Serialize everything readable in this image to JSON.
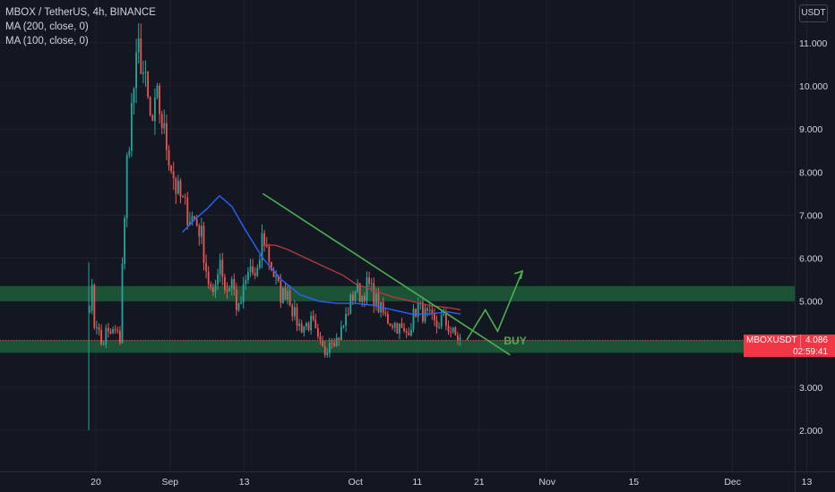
{
  "legend": {
    "symbol_line": "MBOX / TetherUS, 4h, BINANCE",
    "ma200": "MA (200, close, 0)",
    "ma100": "MA (100, close, 0)"
  },
  "currency_button": "USDT",
  "price_tag": {
    "symbol": "MBOXUSDT",
    "price": "4.086",
    "countdown": "02:59:41"
  },
  "colors": {
    "background": "#131722",
    "up": "#26a69a",
    "down": "#ef5350",
    "ma200": "#b23a3a",
    "ma100": "#2962ff",
    "trendline": "#4caf50",
    "zone": "#1f5e3a",
    "price_tag": "#f23645"
  },
  "chart_data": {
    "type": "candlestick",
    "ylim": [
      1.6,
      11.9
    ],
    "y_ticks": [
      "2.000",
      "3.000",
      "4.000",
      "5.000",
      "6.000",
      "7.000",
      "8.000",
      "9.000",
      "10.000",
      "11.000"
    ],
    "x_ticks": [
      "20",
      "Sep",
      "13",
      "Oct",
      "11",
      "21",
      "Nov",
      "15",
      "Dec",
      "13"
    ],
    "last_price": 4.086,
    "price_path": [
      [
        "Aug 19",
        5.0
      ],
      [
        "Aug 19",
        5.9
      ],
      [
        "Aug 20",
        4.0
      ],
      [
        "Aug 20",
        4.6
      ],
      [
        "Aug 21",
        3.9
      ],
      [
        "Aug 22",
        4.5
      ],
      [
        "Aug 22",
        4.2
      ],
      [
        "Aug 23",
        4.3
      ],
      [
        "Aug 24",
        4.1
      ],
      [
        "Aug 24",
        5.3
      ],
      [
        "Aug 25",
        7.6
      ],
      [
        "Aug 25",
        8.2
      ],
      [
        "Aug 26",
        9.8
      ],
      [
        "Aug 27",
        10.9
      ],
      [
        "Aug 28",
        10.0
      ],
      [
        "Aug 29",
        9.0
      ],
      [
        "Aug 30",
        9.7
      ],
      [
        "Aug 31",
        8.9
      ],
      [
        "Sep 1",
        8.3
      ],
      [
        "Sep 2",
        7.6
      ],
      [
        "Sep 3",
        7.3
      ],
      [
        "Sep 4",
        7.0
      ],
      [
        "Sep 5",
        6.9
      ],
      [
        "Sep 6",
        6.6
      ],
      [
        "Sep 7",
        5.6
      ],
      [
        "Sep 8",
        5.0
      ],
      [
        "Sep 9",
        6.1
      ],
      [
        "Sep 10",
        5.2
      ],
      [
        "Sep 11",
        5.5
      ],
      [
        "Sep 12",
        4.7
      ],
      [
        "Sep 13",
        5.3
      ],
      [
        "Sep 14",
        5.8
      ],
      [
        "Sep 15",
        5.4
      ],
      [
        "Sep 16",
        6.6
      ],
      [
        "Sep 17",
        6.0
      ],
      [
        "Sep 18",
        5.5
      ],
      [
        "Sep 19",
        5.1
      ],
      [
        "Sep 20",
        5.3
      ],
      [
        "Sep 21",
        4.7
      ],
      [
        "Sep 22",
        4.4
      ],
      [
        "Sep 24",
        4.5
      ],
      [
        "Sep 25",
        4.0
      ],
      [
        "Sep 26",
        3.8
      ],
      [
        "Sep 27",
        4.2
      ],
      [
        "Sep 28",
        4.1
      ],
      [
        "Sep 29",
        4.4
      ],
      [
        "Sep 30",
        4.9
      ],
      [
        "Oct 1",
        5.3
      ],
      [
        "Oct 2",
        5.1
      ],
      [
        "Oct 3",
        5.4
      ],
      [
        "Oct 4",
        5.1
      ],
      [
        "Oct 5",
        4.8
      ],
      [
        "Oct 6",
        4.6
      ],
      [
        "Oct 7",
        4.5
      ],
      [
        "Oct 8",
        4.4
      ],
      [
        "Oct 9",
        4.2
      ],
      [
        "Oct 10",
        4.5
      ],
      [
        "Oct 11",
        4.9
      ],
      [
        "Oct 12",
        4.7
      ],
      [
        "Oct 13",
        4.6
      ],
      [
        "Oct 14",
        4.4
      ],
      [
        "Oct 15",
        4.6
      ],
      [
        "Oct 16",
        4.4
      ],
      [
        "Oct 17",
        4.2
      ],
      [
        "Oct 18",
        4.1
      ]
    ],
    "ma200": [
      [
        "Sep 16",
        6.3
      ],
      [
        "Sep 18",
        6.3
      ],
      [
        "Sep 20",
        6.2
      ],
      [
        "Sep 23",
        6.0
      ],
      [
        "Sep 26",
        5.8
      ],
      [
        "Sep 29",
        5.6
      ],
      [
        "Oct 1",
        5.4
      ],
      [
        "Oct 4",
        5.25
      ],
      [
        "Oct 7",
        5.1
      ],
      [
        "Oct 10",
        5.0
      ],
      [
        "Oct 13",
        4.9
      ],
      [
        "Oct 16",
        4.85
      ],
      [
        "Oct 18",
        4.8
      ]
    ],
    "ma100": [
      [
        "Sep 3",
        6.6
      ],
      [
        "Sep 5",
        6.9
      ],
      [
        "Sep 7",
        7.15
      ],
      [
        "Sep 9",
        7.45
      ],
      [
        "Sep 11",
        7.2
      ],
      [
        "Sep 13",
        6.7
      ],
      [
        "Sep 16",
        6.0
      ],
      [
        "Sep 19",
        5.5
      ],
      [
        "Sep 22",
        5.15
      ],
      [
        "Sep 25",
        5.0
      ],
      [
        "Sep 28",
        4.95
      ],
      [
        "Oct 1",
        4.95
      ],
      [
        "Oct 4",
        4.9
      ],
      [
        "Oct 7",
        4.8
      ],
      [
        "Oct 10",
        4.7
      ],
      [
        "Oct 13",
        4.7
      ],
      [
        "Oct 16",
        4.75
      ],
      [
        "Oct 18",
        4.7
      ]
    ],
    "zones": [
      [
        5.0,
        5.35
      ],
      [
        3.8,
        4.1
      ]
    ],
    "trendline": [
      [
        "Sep 16",
        7.5
      ],
      [
        "Oct 26",
        3.75
      ]
    ],
    "projection": [
      [
        "Oct 19",
        4.1
      ],
      [
        "Oct 22",
        4.8
      ],
      [
        "Oct 24",
        4.3
      ],
      [
        "Oct 28",
        5.7
      ]
    ],
    "annotation": "BUY"
  }
}
